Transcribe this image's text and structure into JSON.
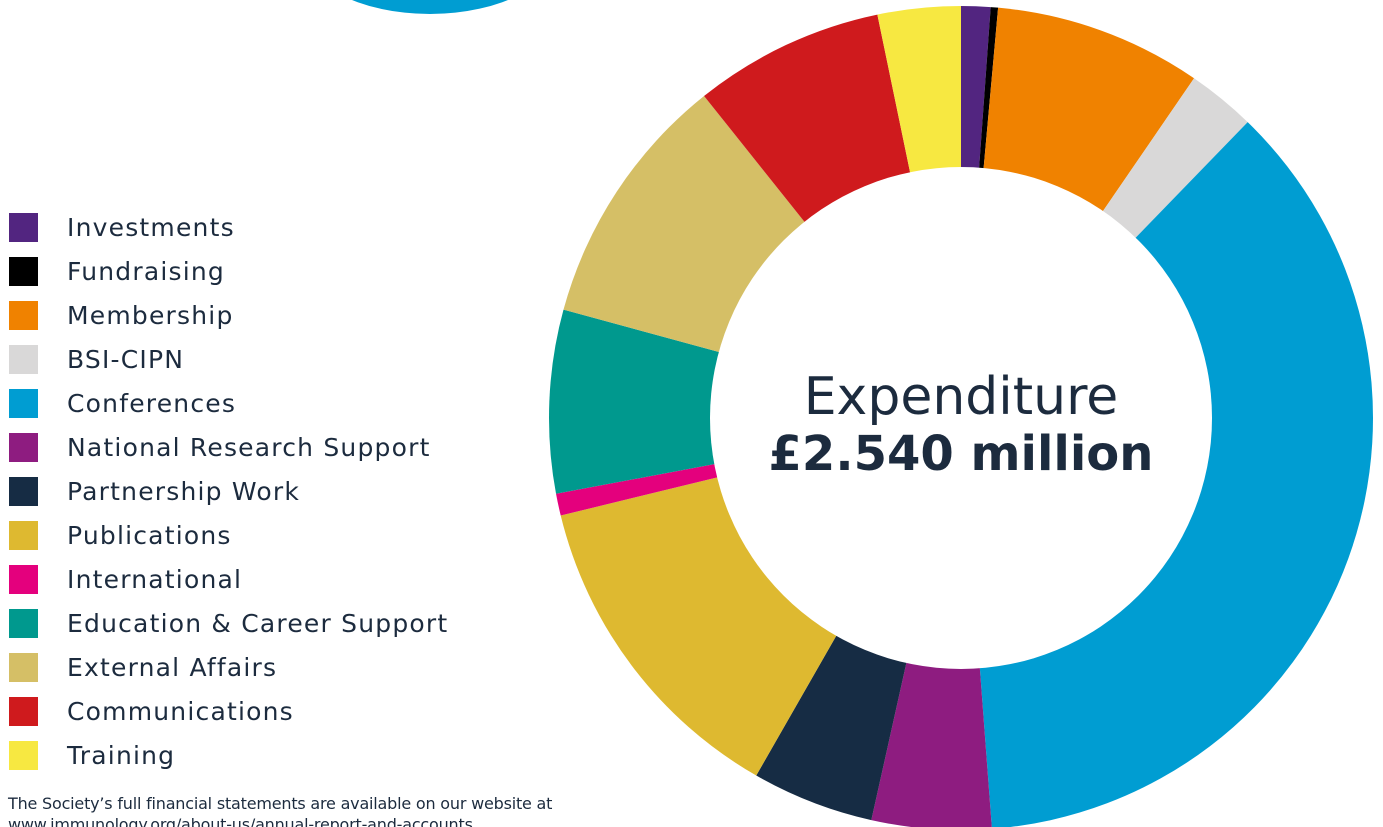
{
  "chart_data": {
    "type": "pie",
    "title": "Expenditure",
    "subtitle": "£2.540 million",
    "categories": [
      "Investments",
      "Fundraising",
      "Membership",
      "BSI-CIPN",
      "Conferences",
      "National Research Support",
      "Partnership Work",
      "Publications",
      "International",
      "Education & Career Support",
      "External Affairs",
      "Communications",
      "Training"
    ],
    "values": [
      1.2,
      0.3,
      8.5,
      2.8,
      38.2,
      4.9,
      5.0,
      13.5,
      0.9,
      7.5,
      10.5,
      7.8,
      3.4
    ],
    "colors": [
      "#522580",
      "#000000",
      "#f08200",
      "#d9d8d8",
      "#009dd2",
      "#8e1c80",
      "#162c44",
      "#deb930",
      "#e4007d",
      "#00998e",
      "#d5bf66",
      "#cf1a1d",
      "#f7e841"
    ],
    "start_angle_deg": 0,
    "direction": "clockwise",
    "legend_position": "left"
  },
  "decor": {
    "blob_color": "#009dd2"
  },
  "footnote": "The Society’s full financial statements are available on our website at www.immunology.org/about-us/annual-report-and-accounts"
}
